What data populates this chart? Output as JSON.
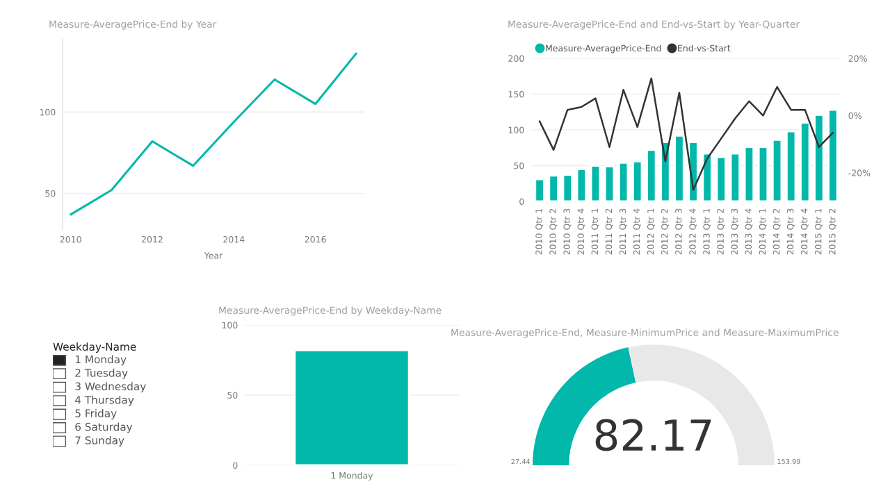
{
  "chart_data": [
    {
      "type": "line",
      "title": "Measure-AveragePrice-End by Year",
      "xlabel": "Year",
      "x": [
        2010,
        2011,
        2012,
        2013,
        2014,
        2015,
        2016,
        2017
      ],
      "series": [
        {
          "color": "#01b8aa",
          "values": [
            37,
            52,
            82,
            67,
            94,
            120,
            105,
            136
          ]
        }
      ],
      "xlim": [
        2009.8,
        2017.2
      ],
      "xticks": [
        2010,
        2012,
        2014,
        2016
      ],
      "ylim": [
        28,
        145
      ],
      "yticks": [
        50,
        100
      ],
      "grid": "y",
      "marker": "none"
    },
    {
      "type": "bar",
      "title": "Measure-AveragePrice-End and End-vs-Start by Year-Quarter",
      "categories": [
        "2010 Qtr 1",
        "2010 Qtr 2",
        "2010 Qtr 3",
        "2010 Qtr 4",
        "2011 Qtr 1",
        "2011 Qtr 2",
        "2011 Qtr 3",
        "2011 Qtr 4",
        "2012 Qtr 1",
        "2012 Qtr 2",
        "2012 Qtr 3",
        "2012 Qtr 4",
        "2013 Qtr 1",
        "2013 Qtr 2",
        "2013 Qtr 3",
        "2013 Qtr 4",
        "2014 Qtr 1",
        "2014 Qtr 2",
        "2014 Qtr 3",
        "2014 Qtr 4",
        "2015 Qtr 1",
        "2015 Qtr 2"
      ],
      "series": [
        {
          "name": "Measure-AveragePrice-End",
          "type": "bar",
          "color": "#01b8aa",
          "values": [
            31,
            36,
            37,
            45,
            50,
            49,
            54,
            56,
            72,
            83,
            92,
            83,
            67,
            62,
            67,
            76,
            76,
            86,
            98,
            110,
            121,
            128
          ]
        },
        {
          "name": "End-vs-Start",
          "type": "line",
          "axis": "y2",
          "color": "#333333",
          "values": [
            -2,
            -12,
            2,
            3,
            6,
            -11,
            9,
            -4,
            13,
            -16,
            8,
            -26,
            -15,
            -8,
            -1,
            5,
            0,
            10,
            2,
            2,
            -11,
            -6
          ]
        }
      ],
      "ylim": [
        0,
        200
      ],
      "yticks": [
        0,
        50,
        100,
        150,
        200
      ],
      "y2lim": [
        -30,
        20
      ],
      "y2ticks": [
        {
          "value": -20,
          "label": "-20%"
        },
        {
          "value": 0,
          "label": "0%"
        },
        {
          "value": 20,
          "label": "20%"
        }
      ],
      "grid": "y",
      "legend": "top left"
    },
    {
      "type": "other",
      "title": "Weekday-Name",
      "categories": [
        "1 Monday",
        "2 Tuesday",
        "3 Wednesday",
        "4 Thursday",
        "5 Friday",
        "6 Saturday",
        "7 Sunday"
      ],
      "colors": [
        "#252423",
        "#ffffff",
        "#ffffff",
        "#ffffff",
        "#ffffff",
        "#ffffff",
        "#ffffff"
      ]
    },
    {
      "type": "bar",
      "title": "Measure-AveragePrice-End by Weekday-Name",
      "categories": [
        "1 Monday"
      ],
      "values": [
        82
      ],
      "color": "#01b8aa",
      "ylim": [
        0,
        100
      ],
      "yticks": [
        0,
        50,
        100
      ],
      "grid": "y"
    },
    {
      "title": "Measure-AveragePrice-End, Measure-MinimumPrice and Measure-MaximumPrice",
      "type": "donut",
      "categories": [
        null,
        null
      ],
      "values": [
        43.25,
        56.75
      ],
      "colors": [
        "#01b8aa",
        "#e8e8e8"
      ],
      "annotations": [
        "82.17",
        "27.44",
        "153.99"
      ]
    }
  ]
}
